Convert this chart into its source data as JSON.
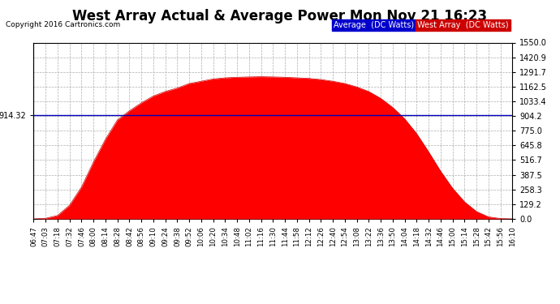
{
  "title": "West Array Actual & Average Power Mon Nov 21 16:23",
  "copyright": "Copyright 2016 Cartronics.com",
  "legend_average": "Average  (DC Watts)",
  "legend_west": "West Array  (DC Watts)",
  "average_line": 914.32,
  "ymin": 0.0,
  "ymax": 1550.0,
  "yticks": [
    0.0,
    129.2,
    258.3,
    387.5,
    516.7,
    645.8,
    775.0,
    904.2,
    1033.4,
    1162.5,
    1291.7,
    1420.9,
    1550.0
  ],
  "ytick_labels": [
    "0.0",
    "129.2",
    "258.3",
    "387.5",
    "516.7",
    "645.8",
    "775.0",
    "904.2",
    "1033.4",
    "1162.5",
    "1291.7",
    "1420.9",
    "1550.0"
  ],
  "average_color": "#0000bb",
  "west_fill_color": "#ff0000",
  "background_color": "#ffffff",
  "grid_color": "#999999",
  "title_fontsize": 12,
  "xtick_labels": [
    "06:47",
    "07:03",
    "07:18",
    "07:32",
    "07:46",
    "08:00",
    "08:14",
    "08:28",
    "08:42",
    "08:56",
    "09:10",
    "09:24",
    "09:38",
    "09:52",
    "10:06",
    "10:20",
    "10:34",
    "10:48",
    "11:02",
    "11:16",
    "11:30",
    "11:44",
    "11:58",
    "12:12",
    "12:26",
    "12:40",
    "12:54",
    "13:08",
    "13:22",
    "13:36",
    "13:50",
    "14:04",
    "14:18",
    "14:32",
    "14:46",
    "15:00",
    "15:14",
    "15:28",
    "15:42",
    "15:56",
    "16:10"
  ],
  "power_values": [
    0,
    5,
    30,
    120,
    280,
    500,
    700,
    870,
    950,
    1020,
    1080,
    1120,
    1150,
    1190,
    1210,
    1230,
    1240,
    1245,
    1248,
    1250,
    1248,
    1245,
    1240,
    1235,
    1225,
    1210,
    1190,
    1160,
    1120,
    1060,
    980,
    880,
    750,
    590,
    420,
    270,
    150,
    65,
    18,
    3,
    0
  ],
  "legend_avg_bg": "#0000cc",
  "legend_west_bg": "#cc0000"
}
